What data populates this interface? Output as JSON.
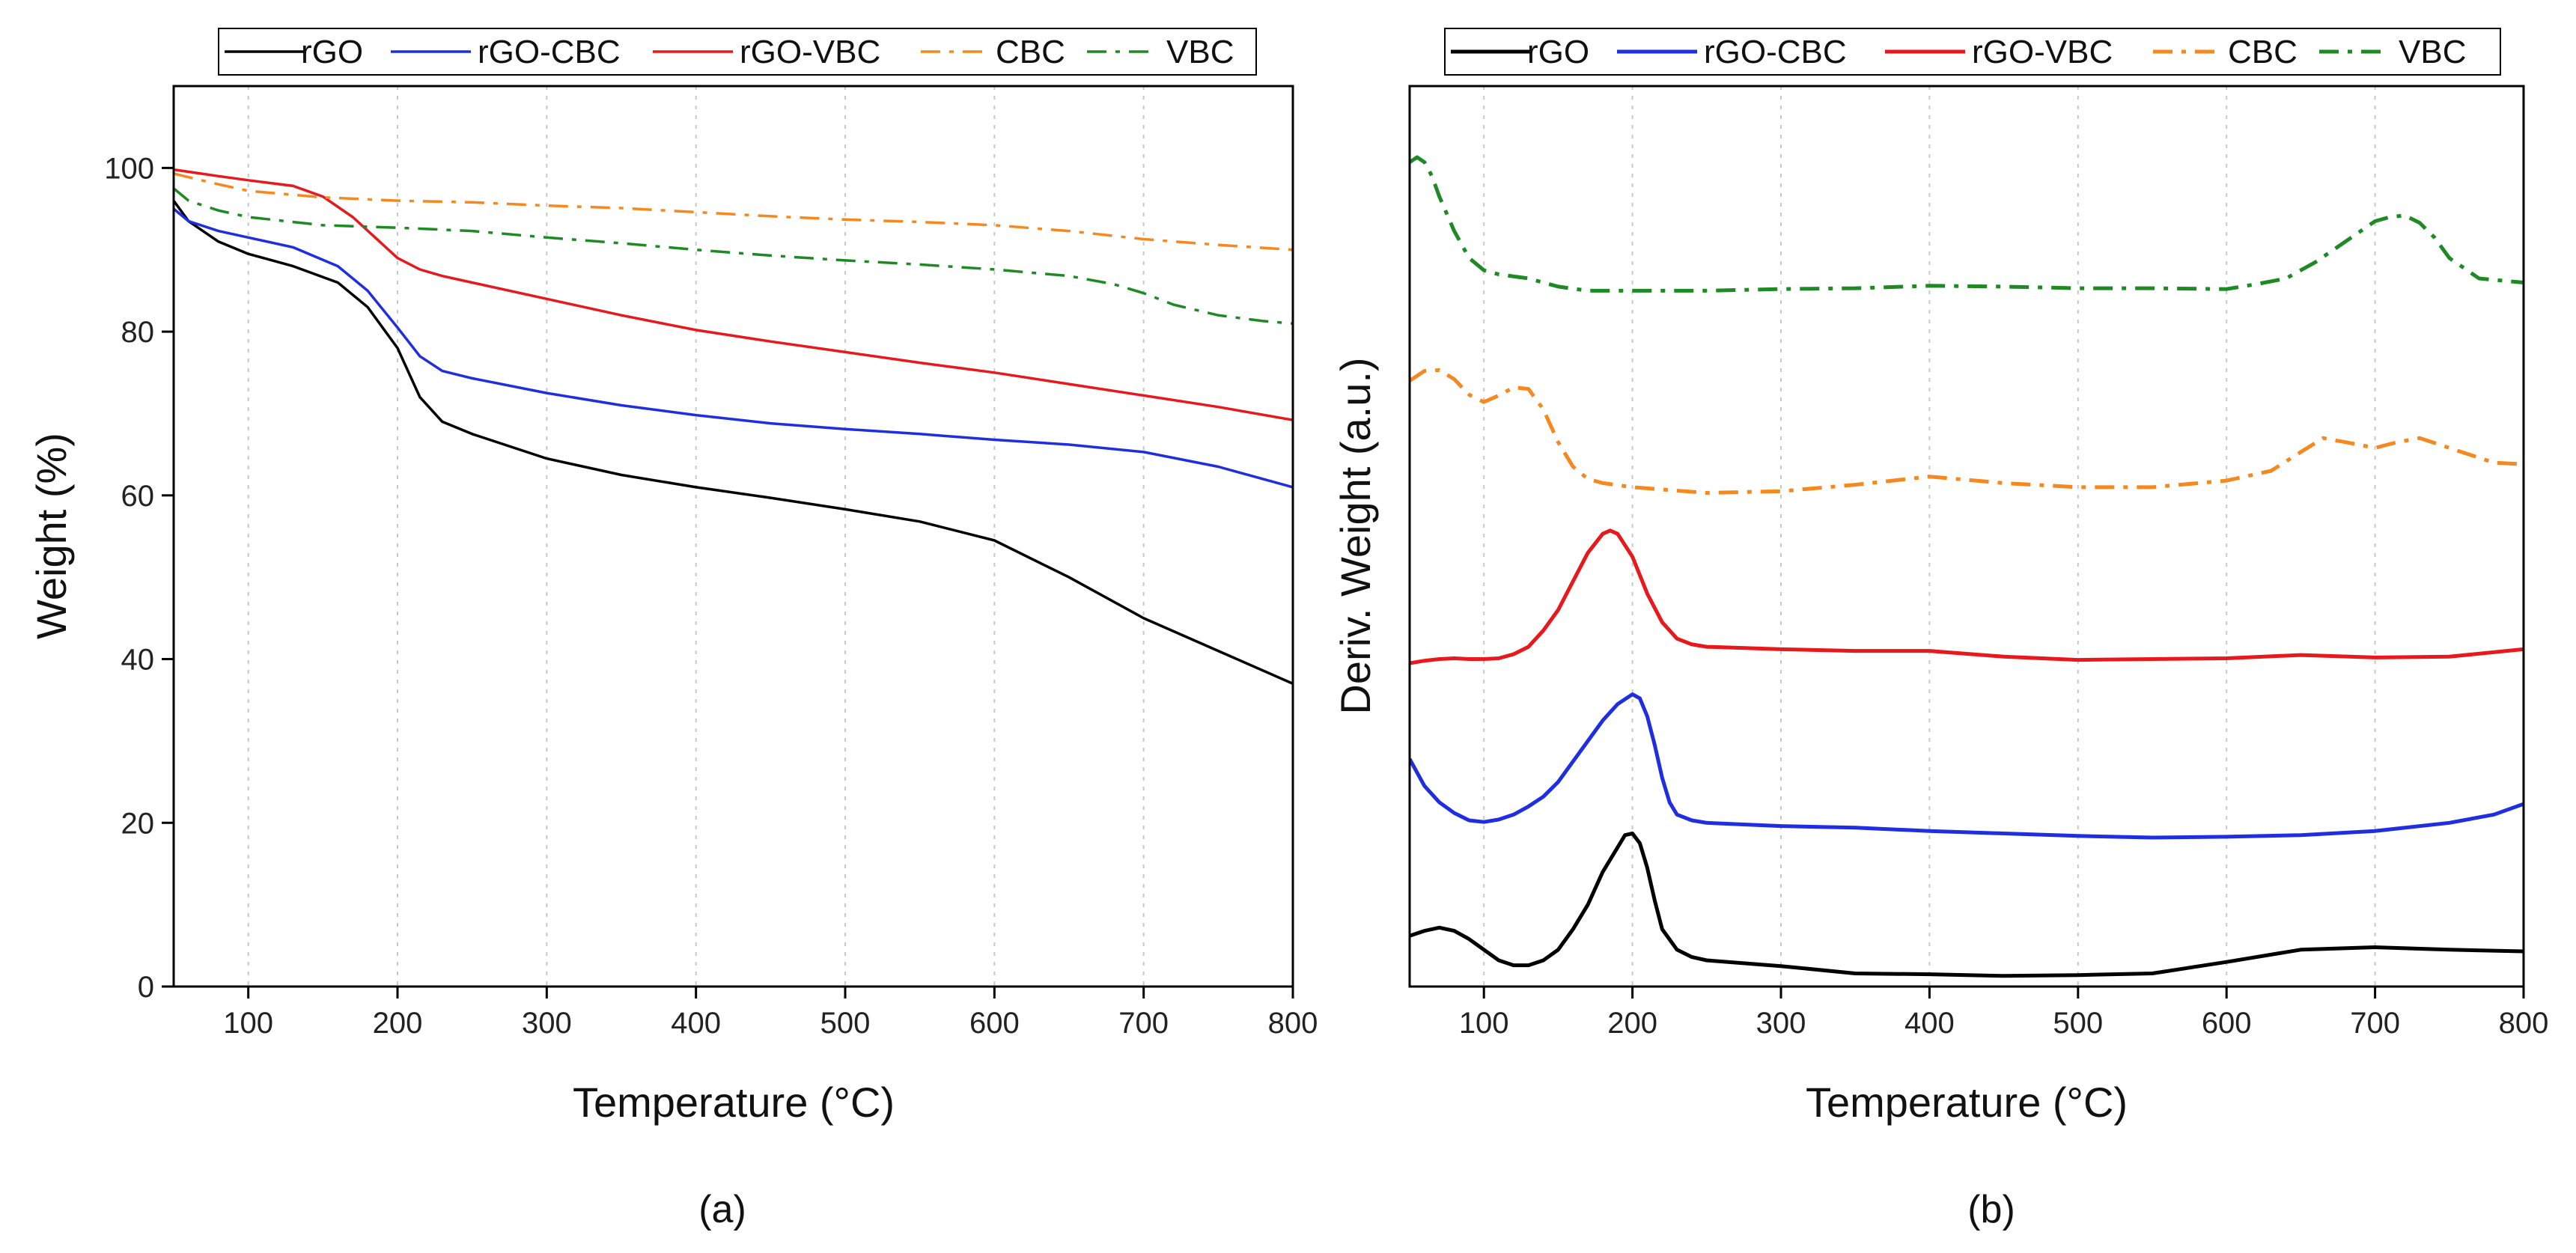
{
  "chart_data": [
    {
      "type": "line",
      "panel_label": "(a)",
      "xlabel": "Temperature (°C)",
      "ylabel": "Weight (%)",
      "xlim": [
        50,
        800
      ],
      "ylim": [
        0,
        110
      ],
      "xticks": [
        100,
        200,
        300,
        400,
        500,
        600,
        700,
        800
      ],
      "yticks": [
        0,
        20,
        40,
        60,
        80,
        100
      ],
      "vgrid": true,
      "legend_position": "top",
      "series": [
        {
          "name": "rGO",
          "color": "#000000",
          "dash": "solid",
          "x": [
            50,
            60,
            80,
            100,
            130,
            160,
            180,
            200,
            215,
            230,
            250,
            300,
            350,
            400,
            450,
            500,
            550,
            600,
            650,
            700,
            750,
            800
          ],
          "y": [
            96,
            93.5,
            91,
            89.5,
            88,
            86,
            83,
            78,
            72,
            69,
            67.5,
            64.5,
            62.5,
            61,
            59.7,
            58.3,
            56.8,
            54.5,
            50,
            45,
            41,
            37
          ]
        },
        {
          "name": "rGO-CBC",
          "color": "#1f2ee0",
          "dash": "solid",
          "x": [
            50,
            60,
            80,
            100,
            130,
            160,
            180,
            200,
            215,
            230,
            250,
            300,
            350,
            400,
            450,
            500,
            550,
            600,
            650,
            700,
            750,
            800
          ],
          "y": [
            95,
            93.5,
            92.3,
            91.5,
            90.3,
            88,
            85,
            80.5,
            77,
            75.2,
            74.3,
            72.5,
            71,
            69.8,
            68.8,
            68.1,
            67.5,
            66.8,
            66.2,
            65.3,
            63.5,
            61
          ]
        },
        {
          "name": "rGO-VBC",
          "color": "#e8191c",
          "dash": "solid",
          "x": [
            50,
            80,
            100,
            130,
            150,
            170,
            185,
            200,
            215,
            230,
            250,
            300,
            350,
            400,
            450,
            500,
            550,
            600,
            650,
            700,
            750,
            800
          ],
          "y": [
            99.8,
            99,
            98.5,
            97.8,
            96.5,
            94,
            91.5,
            89,
            87.6,
            86.8,
            86,
            84,
            82,
            80.2,
            78.8,
            77.5,
            76.2,
            75,
            73.6,
            72.2,
            70.8,
            69.2
          ]
        },
        {
          "name": "CBC",
          "color": "#f5891f",
          "dash": "dashdot",
          "x": [
            50,
            80,
            100,
            150,
            200,
            250,
            300,
            350,
            400,
            450,
            500,
            550,
            600,
            650,
            700,
            750,
            800
          ],
          "y": [
            99.3,
            98,
            97.2,
            96.4,
            96,
            95.8,
            95.4,
            95.1,
            94.6,
            94.1,
            93.7,
            93.4,
            93,
            92.3,
            91.3,
            90.6,
            90
          ]
        },
        {
          "name": "VBC",
          "color": "#1e8a24",
          "dash": "dashdot",
          "x": [
            50,
            60,
            80,
            100,
            150,
            200,
            250,
            300,
            350,
            400,
            450,
            500,
            550,
            600,
            650,
            680,
            700,
            720,
            750,
            780,
            800
          ],
          "y": [
            97.5,
            96,
            94.8,
            94,
            93,
            92.7,
            92.3,
            91.5,
            90.8,
            90,
            89.3,
            88.7,
            88.2,
            87.6,
            86.8,
            85.8,
            84.7,
            83.3,
            82,
            81.3,
            81
          ]
        }
      ]
    },
    {
      "type": "line",
      "panel_label": "(b)",
      "xlabel": "Temperature (°C)",
      "ylabel": "Deriv. Weight (a.u.)",
      "xlim": [
        50,
        800
      ],
      "ylim": [
        0,
        110
      ],
      "xticks": [
        100,
        200,
        300,
        400,
        500,
        600,
        700,
        800
      ],
      "yticks": [],
      "vgrid": true,
      "legend_position": "top",
      "series": [
        {
          "name": "rGO",
          "color": "#000000",
          "dash": "solid",
          "x": [
            50,
            60,
            70,
            80,
            90,
            100,
            110,
            120,
            130,
            140,
            150,
            160,
            170,
            180,
            190,
            195,
            200,
            205,
            210,
            215,
            220,
            230,
            240,
            250,
            300,
            350,
            400,
            450,
            500,
            550,
            600,
            650,
            700,
            750,
            800
          ],
          "y": [
            6.2,
            6.8,
            7.2,
            6.8,
            5.8,
            4.5,
            3.2,
            2.6,
            2.6,
            3.2,
            4.5,
            7,
            10,
            14,
            17,
            18.5,
            18.7,
            17.5,
            14.5,
            10.5,
            7,
            4.5,
            3.6,
            3.2,
            2.5,
            1.6,
            1.5,
            1.3,
            1.4,
            1.6,
            3,
            4.5,
            4.8,
            4.5,
            4.3
          ]
        },
        {
          "name": "rGO-CBC",
          "color": "#1f2ee0",
          "dash": "solid",
          "x": [
            50,
            60,
            70,
            80,
            90,
            100,
            110,
            120,
            130,
            140,
            150,
            160,
            170,
            180,
            190,
            200,
            205,
            210,
            215,
            220,
            225,
            230,
            240,
            250,
            300,
            350,
            400,
            450,
            500,
            550,
            600,
            650,
            700,
            750,
            780,
            800
          ],
          "y": [
            27.8,
            24.5,
            22.5,
            21.2,
            20.3,
            20.1,
            20.4,
            21,
            22,
            23.2,
            25,
            27.5,
            30,
            32.5,
            34.5,
            35.7,
            35.2,
            33,
            29.5,
            25.5,
            22.5,
            21,
            20.3,
            20,
            19.6,
            19.4,
            19,
            18.7,
            18.4,
            18.2,
            18.3,
            18.5,
            19,
            20,
            21,
            22.3
          ]
        },
        {
          "name": "rGO-VBC",
          "color": "#e8191c",
          "dash": "solid",
          "x": [
            50,
            60,
            70,
            80,
            90,
            100,
            110,
            120,
            130,
            140,
            150,
            160,
            170,
            180,
            185,
            190,
            200,
            210,
            220,
            230,
            240,
            250,
            300,
            350,
            400,
            450,
            500,
            550,
            600,
            650,
            700,
            750,
            800
          ],
          "y": [
            39.5,
            39.8,
            40,
            40.1,
            40,
            40,
            40.1,
            40.6,
            41.5,
            43.5,
            46,
            49.5,
            53,
            55.3,
            55.7,
            55.3,
            52.5,
            48,
            44.5,
            42.5,
            41.8,
            41.5,
            41.2,
            41,
            41,
            40.3,
            39.9,
            40,
            40.1,
            40.5,
            40.2,
            40.3,
            41.2
          ]
        },
        {
          "name": "CBC",
          "color": "#f5891f",
          "dash": "dashdot",
          "x": [
            50,
            60,
            70,
            80,
            90,
            100,
            110,
            120,
            130,
            140,
            150,
            160,
            170,
            180,
            200,
            250,
            300,
            350,
            400,
            450,
            500,
            550,
            600,
            630,
            650,
            665,
            680,
            700,
            715,
            730,
            750,
            780,
            800
          ],
          "y": [
            74,
            75.2,
            75.3,
            74.2,
            72.3,
            71.4,
            72.2,
            73.2,
            73,
            70.5,
            66.5,
            63.5,
            62,
            61.5,
            61,
            60.3,
            60.5,
            61.3,
            62.3,
            61.5,
            61,
            61,
            61.8,
            63,
            65.3,
            67,
            66.5,
            65.8,
            66.5,
            67,
            65.8,
            64,
            63.8
          ]
        },
        {
          "name": "VBC",
          "color": "#1e8a24",
          "dash": "dashdot",
          "x": [
            50,
            55,
            60,
            65,
            70,
            80,
            90,
            100,
            110,
            130,
            150,
            170,
            200,
            250,
            300,
            350,
            400,
            450,
            500,
            550,
            600,
            620,
            640,
            660,
            680,
            700,
            710,
            720,
            730,
            740,
            750,
            770,
            800
          ],
          "y": [
            100.7,
            101.3,
            100.7,
            99,
            96.5,
            92.3,
            89,
            87.5,
            87,
            86.5,
            85.5,
            85,
            85,
            85,
            85.2,
            85.3,
            85.6,
            85.5,
            85.3,
            85.3,
            85.2,
            85.8,
            86.5,
            88.5,
            91,
            93.5,
            94,
            94.2,
            93.3,
            91.5,
            89,
            86.5,
            86
          ]
        }
      ]
    }
  ]
}
